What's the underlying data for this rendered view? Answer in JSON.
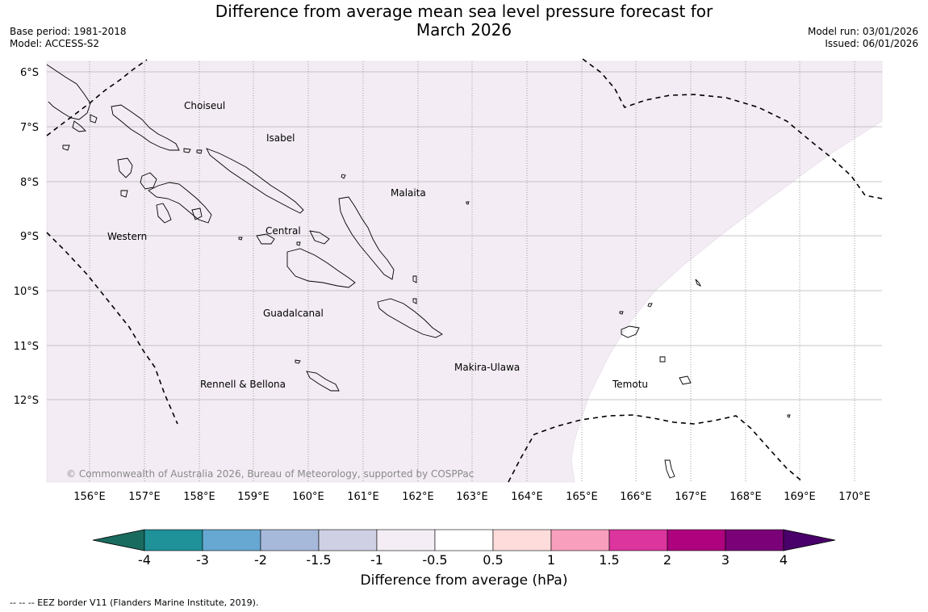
{
  "title": {
    "line1": "Difference from average mean sea level pressure forecast for",
    "line2": "March 2026"
  },
  "meta": {
    "base_period": "Base period: 1981-2018",
    "model": "Model: ACCESS-S2",
    "model_run": "Model run: 03/01/2026",
    "issued": "Issued: 06/01/2026"
  },
  "map": {
    "lat_labels": [
      "6°S",
      "7°S",
      "8°S",
      "9°S",
      "10°S",
      "11°S",
      "12°S"
    ],
    "lon_labels": [
      "156°E",
      "157°E",
      "158°E",
      "159°E",
      "160°E",
      "161°E",
      "162°E",
      "163°E",
      "164°E",
      "165°E",
      "166°E",
      "167°E",
      "168°E",
      "169°E",
      "170°E"
    ],
    "regions": [
      "Choiseul",
      "Isabel",
      "Malaita",
      "Western",
      "Central",
      "Guadalcanal",
      "Makira-Ulawa",
      "Rennell & Bellona",
      "Temotu"
    ],
    "shading_category": "-1 to -0.5",
    "shading_color": "#f3ecf4",
    "copyright": "© Commonwealth of Australia 2026, Bureau of Meteorology, supported by COSPPac"
  },
  "colorbar": {
    "ticks": [
      "-4",
      "-3",
      "-2",
      "-1.5",
      "-1",
      "-0.5",
      "0.5",
      "1",
      "1.5",
      "2",
      "3",
      "4"
    ],
    "colors": [
      "#1a6b5f",
      "#1f9199",
      "#66a8d1",
      "#a7b9db",
      "#cfd0e3",
      "#f4edf5",
      "#ffffff",
      "#fddcdb",
      "#f79fbc",
      "#dc359d",
      "#ae027e",
      "#7a0177",
      "#49006a"
    ],
    "label": "Difference from average (hPa)"
  },
  "legend_note": "--  --  -- EEZ border V11 (Flanders Marine Institute, 2019)."
}
